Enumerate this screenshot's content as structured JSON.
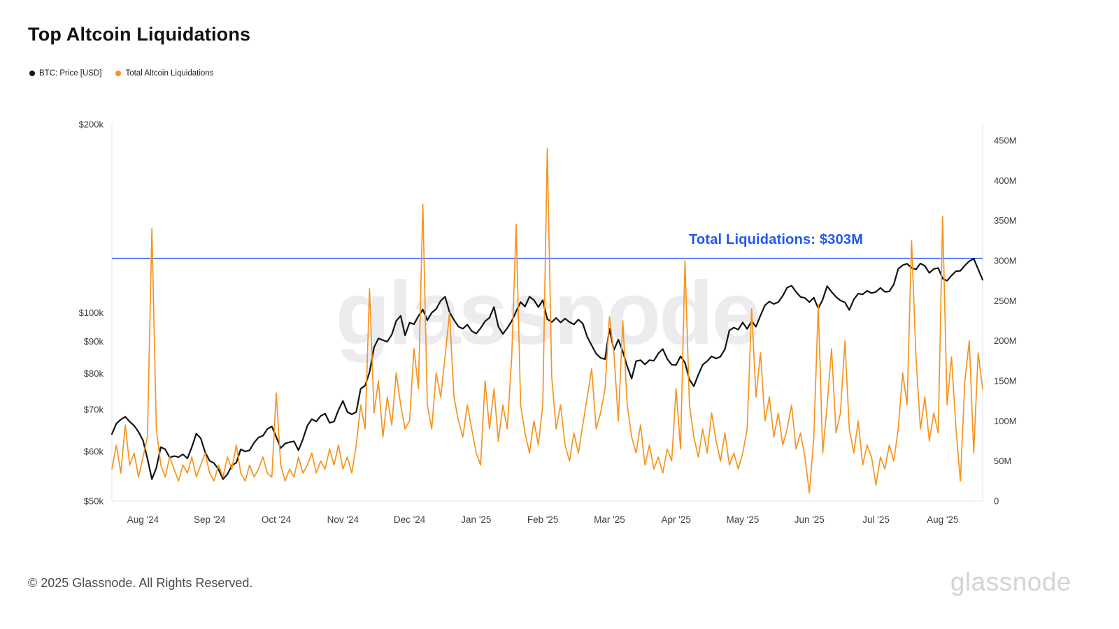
{
  "header": {
    "title": "Top Altcoin Liquidations"
  },
  "legend": [
    {
      "label": "BTC: Price [USD]",
      "color": "#141414"
    },
    {
      "label": "Total Altcoin Liquidations",
      "color": "#f7941d"
    }
  ],
  "watermark": "glassnode",
  "footer": {
    "copyright": "© 2025 Glassnode. All Rights Reserved.",
    "wordmark": "glassnode"
  },
  "colors": {
    "btc_line": "#141414",
    "liquidations_line": "#f7941d",
    "annotation_blue": "#2156f5",
    "axis_text": "#3c3c43",
    "watermark": "#ececef",
    "frame": "#e3e3e8"
  },
  "chart_data": {
    "type": "line",
    "title": "Top Altcoin Liquidations",
    "x_unit": "2-day intervals, mid-Jul 2024 to mid-Aug 2025",
    "x_tick_labels": [
      {
        "index": 7,
        "label": "Aug '24"
      },
      {
        "index": 22,
        "label": "Sep '24"
      },
      {
        "index": 37,
        "label": "Oct '24"
      },
      {
        "index": 52,
        "label": "Nov '24"
      },
      {
        "index": 67,
        "label": "Dec '24"
      },
      {
        "index": 82,
        "label": "Jan '25"
      },
      {
        "index": 97,
        "label": "Feb '25"
      },
      {
        "index": 112,
        "label": "Mar '25"
      },
      {
        "index": 127,
        "label": "Apr '25"
      },
      {
        "index": 142,
        "label": "May '25"
      },
      {
        "index": 157,
        "label": "Jun '25"
      },
      {
        "index": 172,
        "label": "Jul '25"
      },
      {
        "index": 187,
        "label": "Aug '25"
      }
    ],
    "left_axis": {
      "label": "BTC: Price [USD]",
      "scale": "log",
      "min": 50,
      "max": 200,
      "unit": "USD thousands",
      "ticks": [
        {
          "value": 200,
          "label": "$200k"
        },
        {
          "value": 100,
          "label": "$100k"
        },
        {
          "value": 90,
          "label": "$90k"
        },
        {
          "value": 80,
          "label": "$80k"
        },
        {
          "value": 70,
          "label": "$70k"
        },
        {
          "value": 60,
          "label": "$60k"
        },
        {
          "value": 50,
          "label": "$50k"
        }
      ]
    },
    "right_axis": {
      "label": "Total Altcoin Liquidations",
      "scale": "linear",
      "min": 0,
      "max": 470,
      "unit": "USD millions",
      "ticks": [
        {
          "value": 450,
          "label": "450M"
        },
        {
          "value": 400,
          "label": "400M"
        },
        {
          "value": 350,
          "label": "350M"
        },
        {
          "value": 300,
          "label": "300M"
        },
        {
          "value": 250,
          "label": "250M"
        },
        {
          "value": 200,
          "label": "200M"
        },
        {
          "value": 150,
          "label": "150M"
        },
        {
          "value": 100,
          "label": "100M"
        },
        {
          "value": 50,
          "label": "50M"
        },
        {
          "value": 0,
          "label": "0"
        }
      ]
    },
    "reference_line": {
      "value": 303,
      "axis": "right",
      "label": "Total Liquidations: $303M",
      "color": "#2156f5"
    },
    "series": [
      {
        "name": "BTC: Price [USD]",
        "axis": "left",
        "color": "#141414",
        "unit": "USD thousands",
        "values": [
          64.0,
          66.5,
          67.5,
          68.2,
          67.0,
          66.0,
          64.5,
          62.5,
          58.5,
          54.2,
          56.5,
          61.0,
          60.5,
          58.7,
          59.0,
          58.8,
          59.4,
          58.5,
          61.0,
          64.1,
          63.0,
          59.8,
          58.0,
          57.5,
          56.2,
          54.2,
          55.2,
          57.0,
          57.6,
          60.5,
          60.0,
          60.3,
          62.0,
          63.2,
          63.6,
          65.2,
          65.8,
          63.3,
          60.8,
          61.8,
          62.1,
          62.3,
          60.3,
          62.8,
          66.0,
          67.6,
          67.0,
          68.4,
          69.0,
          66.7,
          67.0,
          69.9,
          72.3,
          69.4,
          68.8,
          69.4,
          75.6,
          76.5,
          80.4,
          88.0,
          91.0,
          90.4,
          89.9,
          92.3,
          97.0,
          98.9,
          92.0,
          96.4,
          95.9,
          98.8,
          101.2,
          97.3,
          100.0,
          101.4,
          104.5,
          106.1,
          100.2,
          97.4,
          95.0,
          94.3,
          95.7,
          93.5,
          92.6,
          94.5,
          96.9,
          98.2,
          102.1,
          95.0,
          92.5,
          94.5,
          97.0,
          100.5,
          104.0,
          102.3,
          106.1,
          104.8,
          102.1,
          104.7,
          97.7,
          96.6,
          98.1,
          96.5,
          97.9,
          96.6,
          95.8,
          97.5,
          96.1,
          91.5,
          88.7,
          86.0,
          84.7,
          84.3,
          94.3,
          87.2,
          90.6,
          86.7,
          82.1,
          78.5,
          83.7,
          84.0,
          82.7,
          84.0,
          83.8,
          86.1,
          87.5,
          84.4,
          82.6,
          82.5,
          85.2,
          83.2,
          78.2,
          76.3,
          79.6,
          82.6,
          83.7,
          85.2,
          84.5,
          85.1,
          87.5,
          93.7,
          94.7,
          94.0,
          96.5,
          94.2,
          97.0,
          95.0,
          99.0,
          102.8,
          104.2,
          103.3,
          104.0,
          106.4,
          109.7,
          110.5,
          108.0,
          106.0,
          105.6,
          104.0,
          105.7,
          101.6,
          104.9,
          110.3,
          108.0,
          106.0,
          104.6,
          103.9,
          101.0,
          105.0,
          107.3,
          107.0,
          108.4,
          107.5,
          108.0,
          109.6,
          108.0,
          108.2,
          111.0,
          117.5,
          119.1,
          119.8,
          118.0,
          117.3,
          119.9,
          118.8,
          115.8,
          117.5,
          117.9,
          113.4,
          112.5,
          114.7,
          116.5,
          116.7,
          119.0,
          120.9,
          122.0,
          117.4,
          112.9
        ]
      },
      {
        "name": "Total Altcoin Liquidations",
        "axis": "right",
        "color": "#f7941d",
        "unit": "USD millions",
        "values": [
          40,
          70,
          35,
          95,
          45,
          60,
          30,
          55,
          80,
          340,
          90,
          45,
          30,
          55,
          40,
          25,
          45,
          35,
          55,
          30,
          45,
          60,
          35,
          25,
          45,
          30,
          55,
          40,
          70,
          35,
          25,
          45,
          30,
          40,
          55,
          35,
          30,
          135,
          45,
          25,
          40,
          30,
          55,
          35,
          45,
          60,
          35,
          50,
          40,
          65,
          45,
          70,
          40,
          55,
          35,
          70,
          120,
          90,
          265,
          110,
          150,
          80,
          130,
          95,
          160,
          120,
          90,
          100,
          190,
          140,
          370,
          120,
          90,
          160,
          130,
          180,
          235,
          130,
          100,
          80,
          120,
          90,
          60,
          45,
          150,
          90,
          140,
          75,
          120,
          90,
          180,
          345,
          120,
          85,
          60,
          100,
          70,
          120,
          440,
          155,
          90,
          120,
          70,
          50,
          85,
          60,
          95,
          130,
          165,
          90,
          110,
          140,
          230,
          185,
          100,
          225,
          120,
          80,
          60,
          95,
          45,
          70,
          40,
          55,
          35,
          65,
          50,
          140,
          65,
          300,
          120,
          80,
          55,
          90,
          60,
          110,
          75,
          50,
          85,
          45,
          60,
          40,
          60,
          90,
          240,
          130,
          185,
          100,
          130,
          80,
          110,
          70,
          90,
          120,
          65,
          85,
          55,
          10,
          80,
          245,
          60,
          120,
          190,
          85,
          110,
          200,
          90,
          60,
          100,
          45,
          70,
          55,
          20,
          55,
          40,
          70,
          50,
          90,
          160,
          120,
          325,
          180,
          90,
          130,
          75,
          110,
          85,
          355,
          120,
          180,
          90,
          25,
          150,
          200,
          60,
          185,
          140
        ]
      }
    ]
  }
}
